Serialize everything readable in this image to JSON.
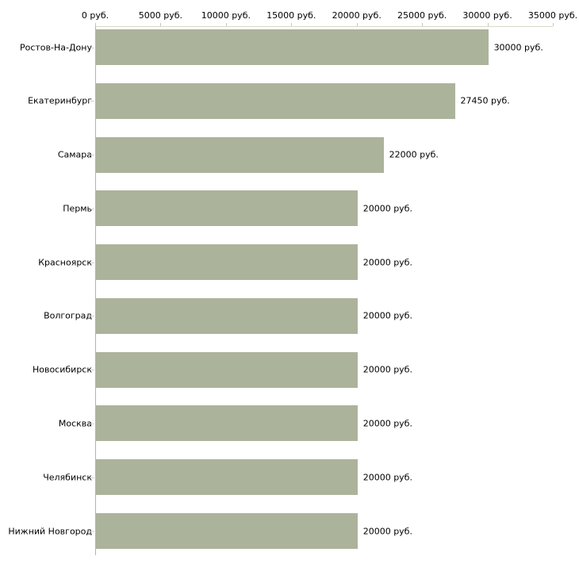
{
  "chart_data": {
    "type": "bar",
    "orientation": "horizontal",
    "title": "",
    "xlabel": "",
    "ylabel": "",
    "unit": "руб.",
    "categories": [
      "Ростов-На-Дону",
      "Екатеринбург",
      "Самара",
      "Пермь",
      "Красноярск",
      "Волгоград",
      "Новосибирск",
      "Москва",
      "Челябинск",
      "Нижний Новгород"
    ],
    "values": [
      30000,
      27450,
      22000,
      20000,
      20000,
      20000,
      20000,
      20000,
      20000,
      20000
    ],
    "value_labels": [
      "30000 руб.",
      "27450 руб.",
      "22000 руб.",
      "20000 руб.",
      "20000 руб.",
      "20000 руб.",
      "20000 руб.",
      "20000 руб.",
      "20000 руб.",
      "20000 руб."
    ],
    "x_ticks": [
      0,
      5000,
      10000,
      15000,
      20000,
      25000,
      30000,
      35000
    ],
    "x_tick_labels": [
      "0 руб.",
      "5000 руб.",
      "10000 руб.",
      "15000 руб.",
      "20000 руб.",
      "25000 руб.",
      "30000 руб.",
      "35000 руб."
    ],
    "xlim": [
      0,
      35000
    ],
    "grid": false,
    "legend": false,
    "colors": {
      "bar": "#acb39b",
      "x_axis_line": "#d9d9cb",
      "y_axis_line": "#b3b3b3",
      "x_tick": "#c9c9ad",
      "cat_tick": "#d2d2c4",
      "text": "#000000",
      "background": "#ffffff"
    }
  }
}
